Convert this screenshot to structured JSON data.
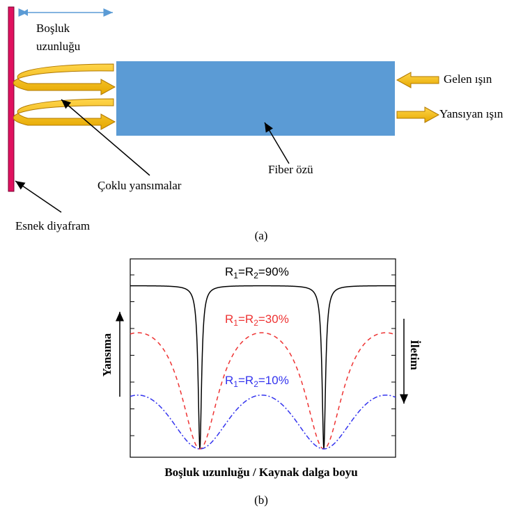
{
  "part_a": {
    "cavity_label_line1": "Boşluk",
    "cavity_label_line2": "uzunluğu",
    "incident": "Gelen ışın",
    "reflected": "Yansıyan ışın",
    "fiber": "Fiber özü",
    "multiple": "Çoklu yansımalar",
    "diaphragm": "Esnek diyafram",
    "caption": "(a)"
  },
  "part_b": {
    "curves": [
      {
        "label": [
          "R",
          "1",
          "=R",
          "2",
          "=90%"
        ],
        "color": "#000000"
      },
      {
        "label": [
          "R",
          "1",
          "=R",
          "2",
          "=30%"
        ],
        "color": "#ee3333"
      },
      {
        "label": [
          "R",
          "1",
          "=R",
          "2",
          "=10%"
        ],
        "color": "#3333ee"
      }
    ],
    "left_label": "Yansıma",
    "right_label": "İletim",
    "xlabel": "Boşluk uzunluğu / Kaynak dalga boyu",
    "caption": "(b)"
  }
}
